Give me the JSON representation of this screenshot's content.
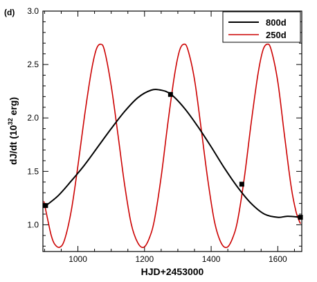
{
  "chart_data": {
    "type": "line",
    "panel_label": "(d)",
    "xlabel": "HJD+2453000",
    "ylabel_main": "dJ/dt (10",
    "ylabel_sup": "32",
    "ylabel_tail": " erg)",
    "xlim": [
      895,
      1672
    ],
    "ylim": [
      0.75,
      3.0
    ],
    "xticks": [
      1000,
      1200,
      1400,
      1600
    ],
    "yticks": [
      1.0,
      1.5,
      2.0,
      2.5,
      3.0
    ],
    "ytick_labels": [
      "1.0",
      "1.5",
      "2.0",
      "2.5",
      "3.0"
    ],
    "x_minor_step": 50,
    "y_minor_step": 0.1,
    "legend_position": "top-right",
    "series": [
      {
        "name": "800d",
        "color": "#000000",
        "x": [
          900,
          940,
          980,
          1020,
          1060,
          1100,
          1140,
          1180,
          1220,
          1250,
          1280,
          1320,
          1360,
          1400,
          1440,
          1480,
          1520,
          1560,
          1600,
          1630,
          1668
        ],
        "y": [
          1.17,
          1.27,
          1.41,
          1.56,
          1.73,
          1.9,
          2.06,
          2.19,
          2.26,
          2.26,
          2.22,
          2.09,
          1.92,
          1.73,
          1.53,
          1.35,
          1.2,
          1.1,
          1.07,
          1.08,
          1.07
        ]
      },
      {
        "name": "250d",
        "color": "#cc0000",
        "x": [
          898,
          910,
          920,
          930,
          945,
          960,
          980,
          1000,
          1020,
          1040,
          1055,
          1068,
          1080,
          1100,
          1120,
          1140,
          1160,
          1180,
          1198,
          1215,
          1230,
          1250,
          1270,
          1290,
          1305,
          1318,
          1330,
          1350,
          1370,
          1390,
          1410,
          1430,
          1448,
          1465,
          1480,
          1500,
          1520,
          1540,
          1555,
          1568,
          1580,
          1600,
          1620,
          1640,
          1655,
          1668
        ],
        "y": [
          1.22,
          1.04,
          0.9,
          0.82,
          0.79,
          0.86,
          1.13,
          1.55,
          2.02,
          2.43,
          2.64,
          2.69,
          2.63,
          2.3,
          1.85,
          1.38,
          1.01,
          0.83,
          0.79,
          0.88,
          1.05,
          1.45,
          1.95,
          2.4,
          2.63,
          2.69,
          2.64,
          2.36,
          1.9,
          1.42,
          1.03,
          0.83,
          0.79,
          0.88,
          1.05,
          1.45,
          1.95,
          2.4,
          2.63,
          2.69,
          2.64,
          2.34,
          1.84,
          1.36,
          1.12,
          1.01
        ]
      }
    ],
    "markers": {
      "color": "#000000",
      "x": [
        903,
        1278,
        1492,
        1668
      ],
      "y": [
        1.18,
        2.22,
        1.38,
        1.07
      ]
    }
  }
}
